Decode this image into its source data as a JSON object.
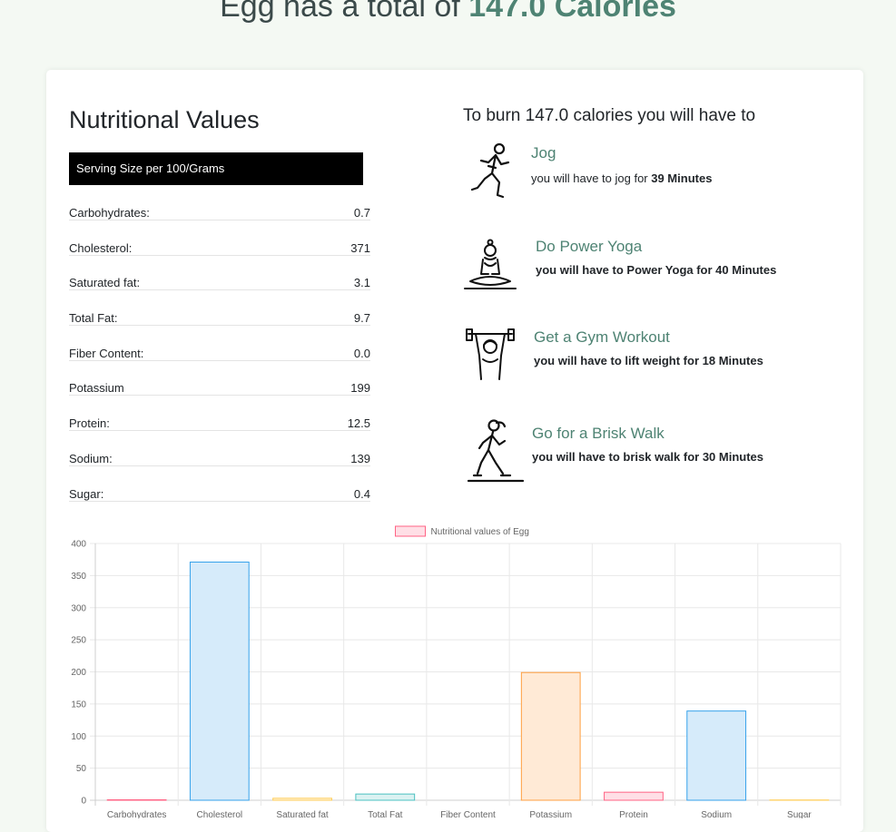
{
  "header": {
    "prefix": "Egg has a total of ",
    "calories": "147.0 Calories"
  },
  "nutrition": {
    "title": "Nutritional Values",
    "serving": "Serving Size per 100/Grams",
    "rows": [
      {
        "label": "Carbohydrates:",
        "value": "0.7"
      },
      {
        "label": "Cholesterol:",
        "value": "371"
      },
      {
        "label": "Saturated fat:",
        "value": "3.1"
      },
      {
        "label": "Total Fat:",
        "value": "9.7"
      },
      {
        "label": "Fiber Content:",
        "value": "0.0"
      },
      {
        "label": "Potassium",
        "value": "199"
      },
      {
        "label": "Protein:",
        "value": "12.5"
      },
      {
        "label": "Sodium:",
        "value": "139"
      },
      {
        "label": "Sugar:",
        "value": "0.4"
      }
    ]
  },
  "burn": {
    "title": "To burn 147.0 calories you will have to",
    "activities": [
      {
        "name": "Jog",
        "desc_prefix": "you will have to jog for ",
        "desc_bold": "39 Minutes",
        "icon": "jogging-icon"
      },
      {
        "name": "Do Power Yoga",
        "desc_prefix": "",
        "desc_bold": "you will have to Power Yoga for 40 Minutes",
        "icon": "yoga-icon"
      },
      {
        "name": "Get a Gym Workout",
        "desc_prefix": "",
        "desc_bold": "you will have to lift weight for 18 Minutes",
        "icon": "weightlifting-icon"
      },
      {
        "name": "Go for a Brisk Walk",
        "desc_prefix": "",
        "desc_bold": "you will have to brisk walk for 30 Minutes",
        "icon": "walking-icon"
      }
    ]
  },
  "chart_data": {
    "type": "bar",
    "legend": "Nutritional values of Egg",
    "legend_position": "top",
    "categories": [
      "Carbohydrates",
      "Cholesterol",
      "Saturated fat",
      "Total Fat",
      "Fiber Content",
      "Potassium",
      "Protein",
      "Sodium",
      "Sugar"
    ],
    "values": [
      0.7,
      371,
      3.1,
      9.7,
      0.0,
      199,
      12.5,
      139,
      0.4
    ],
    "ylim": [
      0,
      400
    ],
    "yticks": [
      0,
      50,
      100,
      150,
      200,
      250,
      300,
      350,
      400
    ],
    "grid": true,
    "colors": {
      "fills": [
        "#ffdfe6",
        "#d6ebfa",
        "#fff3d9",
        "#dbf2f2",
        "#ece3ff",
        "#ffead6",
        "#ffdfe6",
        "#d6ebfa",
        "#fff3d9"
      ],
      "strokes": [
        "#ff6384",
        "#36a2eb",
        "#ffcd56",
        "#4bc0c0",
        "#9966ff",
        "#ff9f40",
        "#ff6384",
        "#36a2eb",
        "#ffcd56"
      ],
      "legend_fill": "#ffdfe6",
      "legend_stroke": "#ff6384"
    }
  }
}
